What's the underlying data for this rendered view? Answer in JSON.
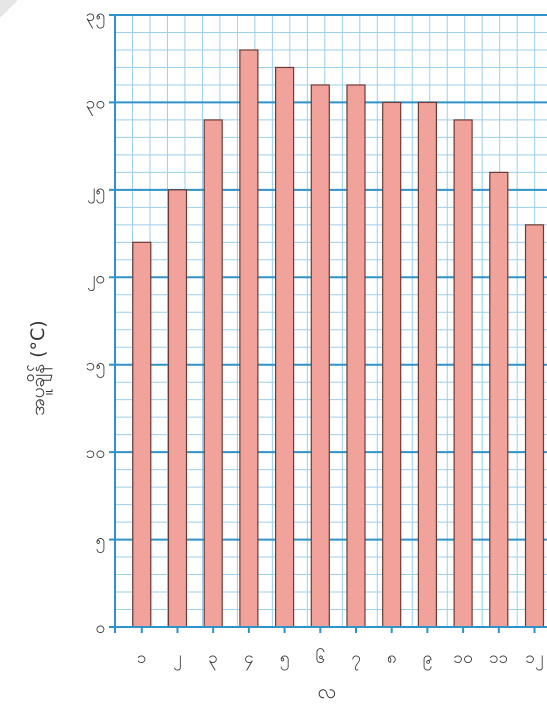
{
  "colors": {
    "bar_fill": "#f1a29b",
    "bar_stroke": "#6b3b36",
    "grid_minor": "#9ccfea",
    "grid_major": "#2f93c9",
    "axis": "#2f93c9",
    "text": "#333333"
  },
  "chart_data": {
    "type": "bar",
    "title": "",
    "xlabel": "လ",
    "ylabel": "အပူချိန် (°C)",
    "categories": [
      "၁",
      "၂",
      "၃",
      "၄",
      "၅",
      "၆",
      "၇",
      "၈",
      "၉",
      "၁၀",
      "၁၁",
      "၁၂"
    ],
    "values": [
      22,
      25,
      29,
      33,
      32,
      31,
      31,
      30,
      30,
      29,
      26,
      23
    ],
    "ylim": [
      0,
      35
    ],
    "yticks": [
      0,
      5,
      10,
      15,
      20,
      25,
      30,
      35
    ],
    "ytick_labels": [
      "၀",
      "၅",
      "၁၀",
      "၁၅",
      "၂၀",
      "၂၅",
      "၃၀",
      "၃၅"
    ],
    "grid": true,
    "minor_grid_step": 1,
    "major_grid_step": 5
  }
}
